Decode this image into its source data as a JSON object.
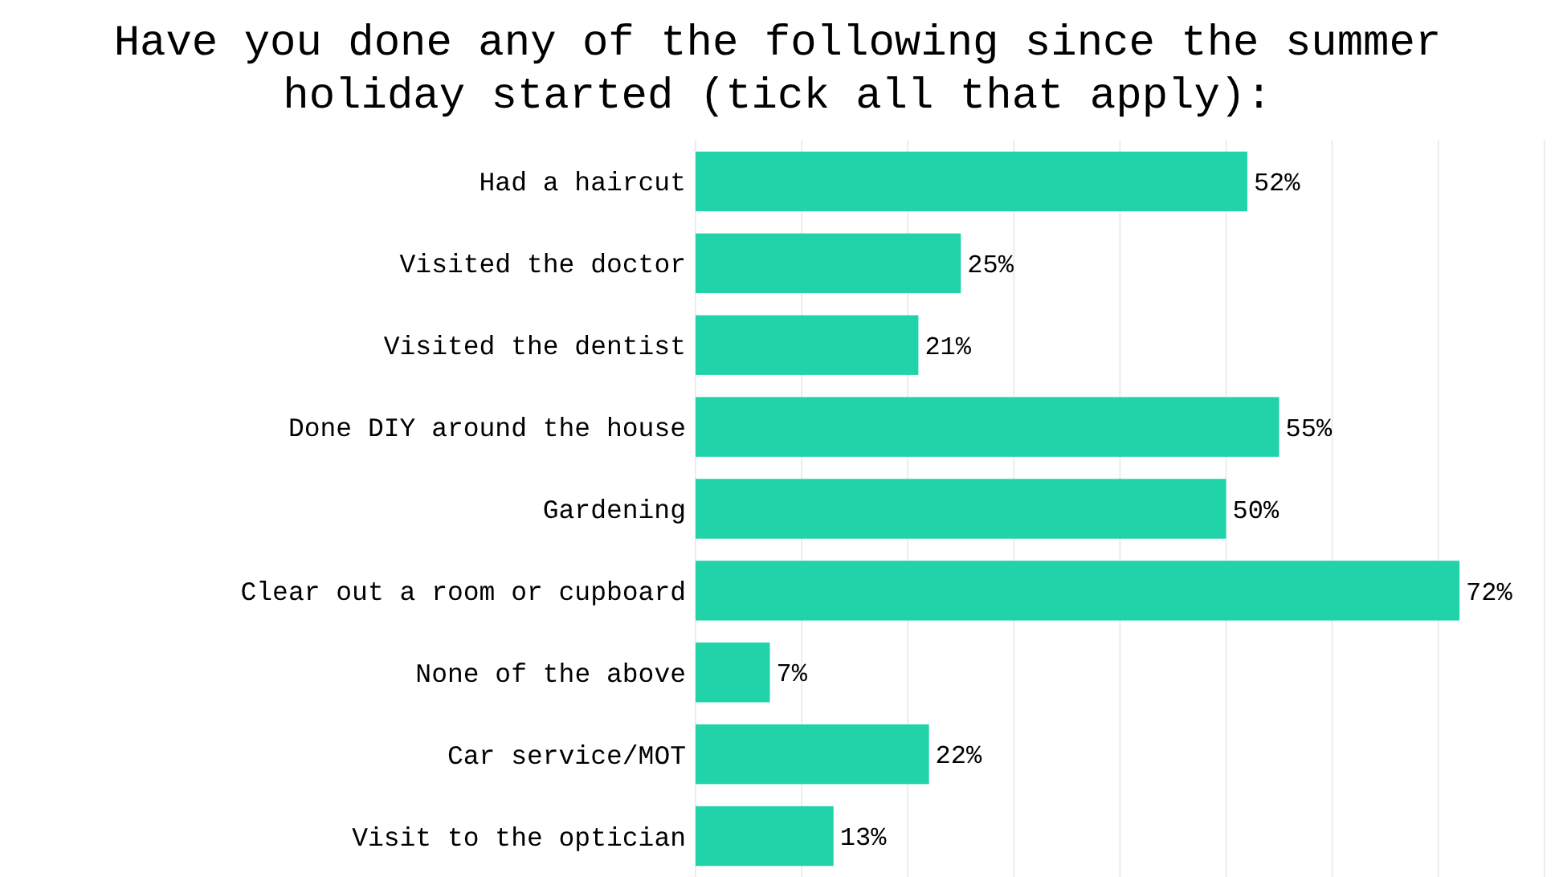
{
  "chart_data": {
    "type": "bar",
    "orientation": "horizontal",
    "title": "Have you done any of the following since the summer holiday started (tick all that apply):",
    "categories": [
      "Had a haircut",
      "Visited the doctor",
      "Visited the dentist",
      "Done DIY around the house",
      "Gardening",
      "Clear out a room or cupboard",
      "None of the above",
      "Car service/MOT",
      "Visit to the optician"
    ],
    "values": [
      52,
      25,
      21,
      55,
      50,
      72,
      7,
      22,
      13
    ],
    "value_labels": [
      "52%",
      "25%",
      "21%",
      "55%",
      "50%",
      "72%",
      "7%",
      "22%",
      "13%"
    ],
    "color": "#20d3a9",
    "xlim": [
      0,
      81
    ],
    "xticks": [
      {
        "value": 0,
        "label": null
      },
      {
        "value": 10,
        "label": null
      },
      {
        "value": 20,
        "label": null
      },
      {
        "value": 30,
        "label": null
      },
      {
        "value": 40,
        "label": null
      },
      {
        "value": 50,
        "label": null
      },
      {
        "value": 60,
        "label": null
      },
      {
        "value": 70,
        "label": null
      },
      {
        "value": 80,
        "label": null
      }
    ],
    "grid": "x",
    "tick_labels": "y"
  }
}
